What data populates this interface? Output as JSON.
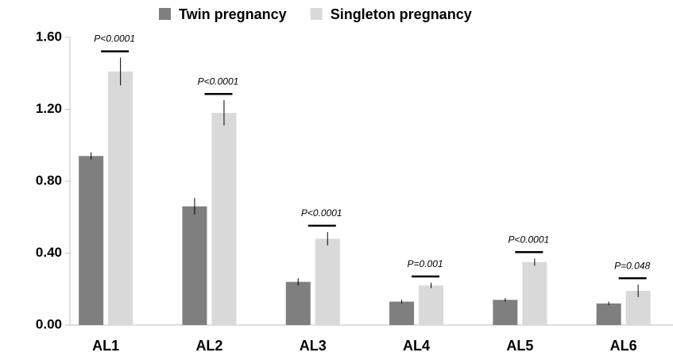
{
  "chart_data": {
    "type": "bar",
    "categories": [
      "AL1",
      "AL2",
      "AL3",
      "AL4",
      "AL5",
      "AL6"
    ],
    "series": [
      {
        "name": "Twin pregnancy",
        "color": "#7f7f7f",
        "values": [
          0.94,
          0.66,
          0.24,
          0.13,
          0.14,
          0.12
        ],
        "errors": [
          0.02,
          0.046,
          0.02,
          0.01,
          0.01,
          0.01
        ]
      },
      {
        "name": "Singleton pregnancy",
        "color": "#d9d9d9",
        "values": [
          1.41,
          1.18,
          0.48,
          0.22,
          0.35,
          0.19
        ],
        "errors": [
          0.077,
          0.07,
          0.037,
          0.015,
          0.02,
          0.035
        ]
      }
    ],
    "annotations": [
      "P<0.0001",
      "P<0.0001",
      "P<0.0001",
      "P=0.001",
      "P<0.0001",
      "P=0.048"
    ],
    "ylim": [
      0,
      1.6
    ],
    "yticks": [
      {
        "value": 0,
        "label": "0.00"
      },
      {
        "value": 0.4,
        "label": "0.40"
      },
      {
        "value": 0.8,
        "label": "0.80"
      },
      {
        "value": 1.2,
        "label": "1.20"
      },
      {
        "value": 1.6,
        "label": "1.60"
      }
    ],
    "legend": "top"
  }
}
